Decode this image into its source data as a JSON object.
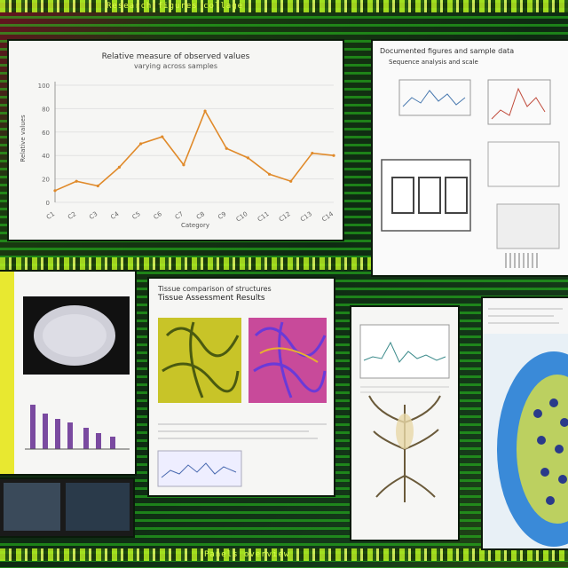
{
  "header_strip": "Research figures collage",
  "footer_strip": "Panels overview",
  "main_chart": {
    "title_line1": "Relative measure of observed values",
    "title_line2": "varying across samples",
    "ylabel": "Relative values",
    "xlabel": "Category"
  },
  "chart_data": {
    "type": "line",
    "title": "Relative measure of observed values varying across samples",
    "xlabel": "Category",
    "ylabel": "Relative values",
    "categories": [
      "C1",
      "C2",
      "C3",
      "C4",
      "C5",
      "C6",
      "C7",
      "C8",
      "C9",
      "C10",
      "C11",
      "C12",
      "C13",
      "C14"
    ],
    "values": [
      10,
      18,
      14,
      30,
      50,
      56,
      32,
      78,
      46,
      38,
      24,
      18,
      42,
      40
    ],
    "ylim": [
      0,
      100
    ],
    "color": "#e08a2a"
  },
  "doc_panel": {
    "heading": "Documented figures and sample data",
    "subheading": "Sequence analysis and scale"
  },
  "tissue_panel": {
    "title_line1": "Tissue comparison of structures",
    "title_line2": "Tissue Assessment Results"
  },
  "colors": {
    "accent_green": "#b8f020",
    "panel_bg": "#f6f6f4",
    "chart_line": "#e08a2a"
  }
}
